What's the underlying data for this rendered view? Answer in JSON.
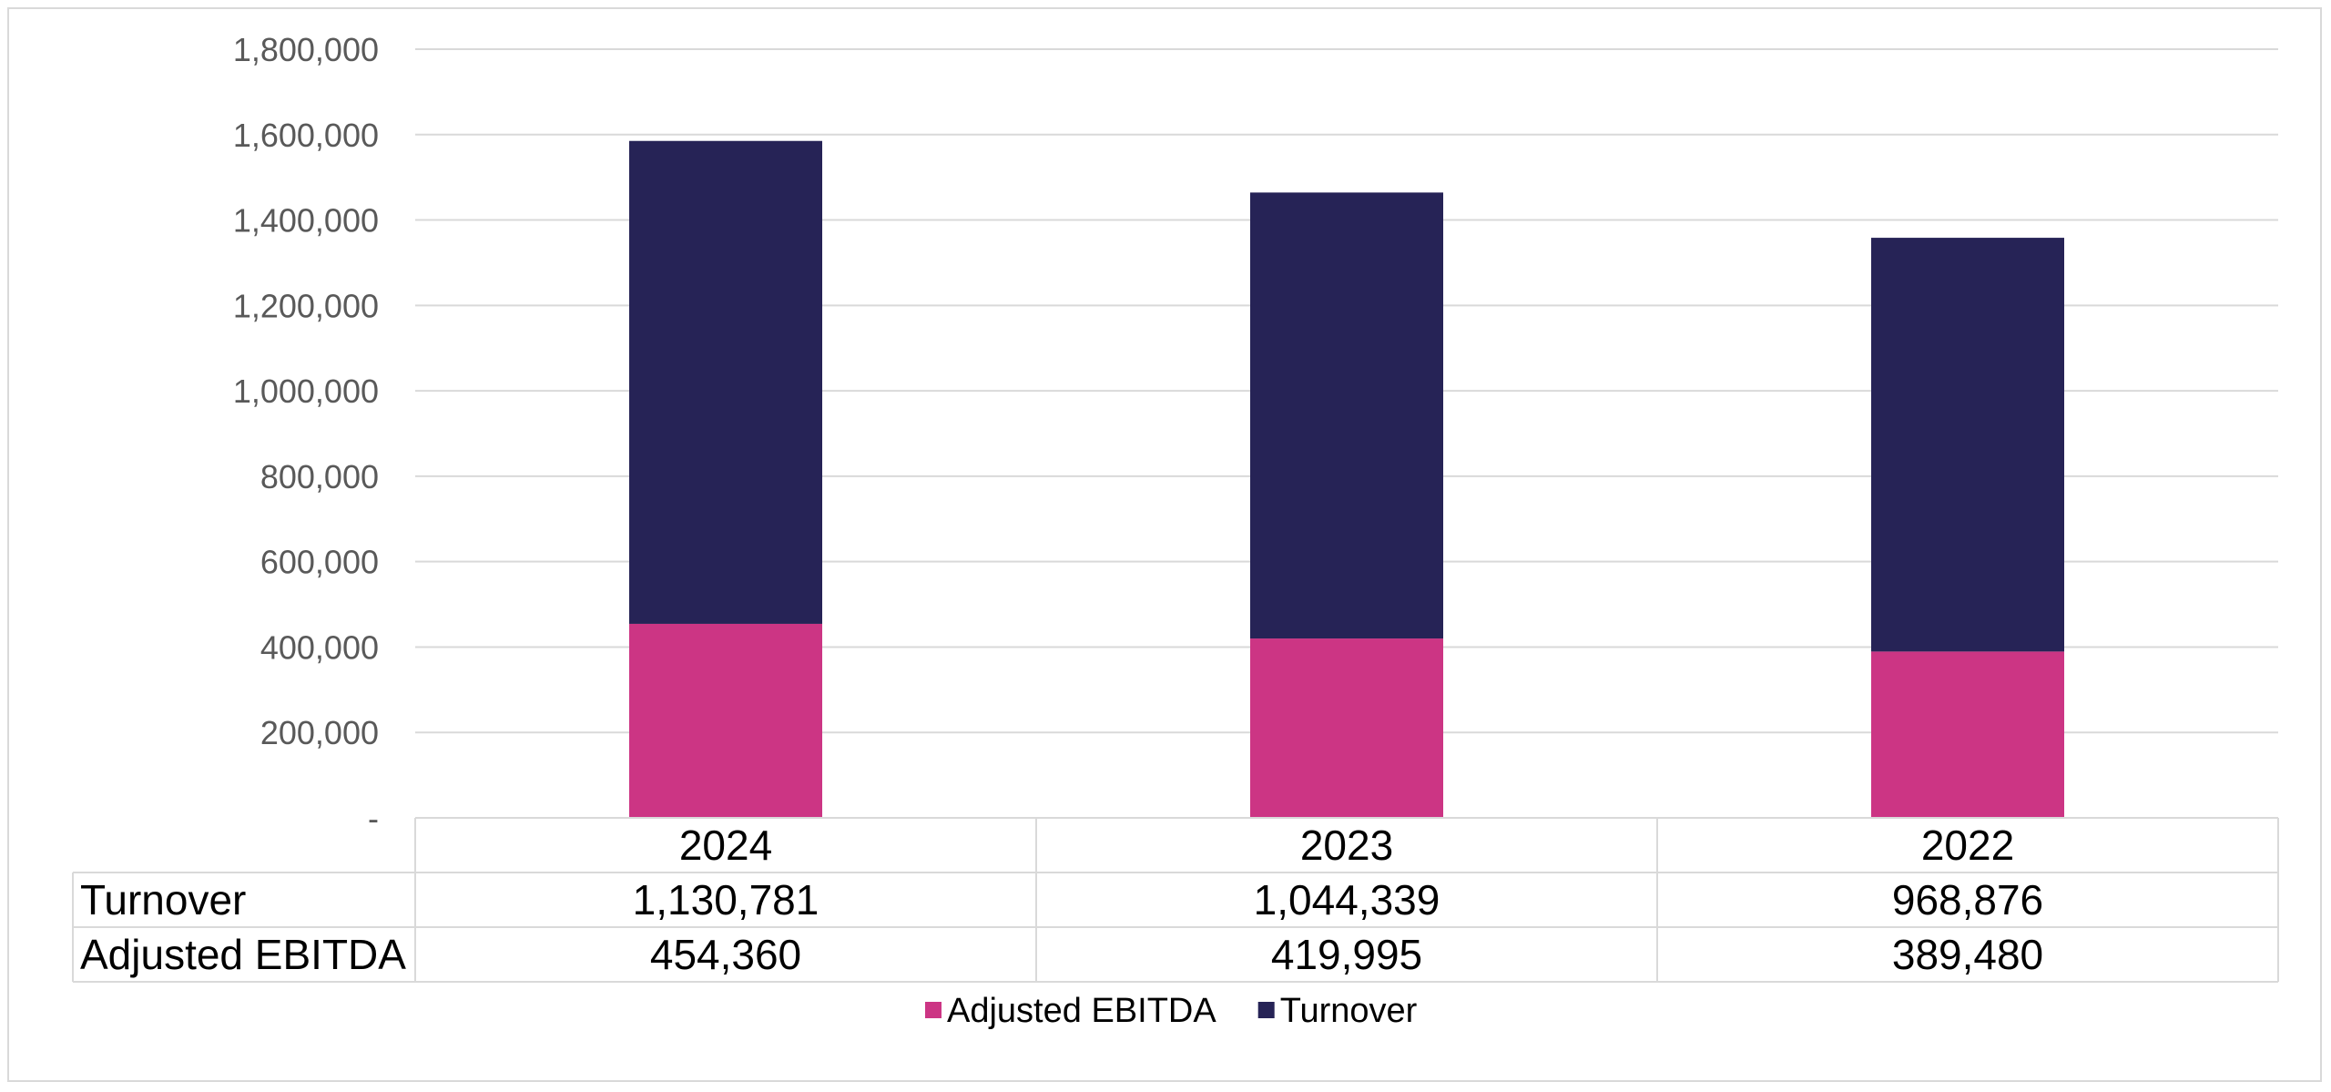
{
  "chart_data": {
    "type": "bar",
    "stacked": true,
    "categories": [
      "2024",
      "2023",
      "2022"
    ],
    "series": [
      {
        "name": "Adjusted EBITDA",
        "values": [
          454360,
          419995,
          389480
        ],
        "color": "#cc3584"
      },
      {
        "name": "Turnover",
        "values": [
          1130781,
          1044339,
          968876
        ],
        "color": "#262356"
      }
    ],
    "ylim": [
      0,
      1800000
    ],
    "yticks": [
      {
        "value": 0,
        "label": "-"
      },
      {
        "value": 200000,
        "label": "200,000"
      },
      {
        "value": 400000,
        "label": "400,000"
      },
      {
        "value": 600000,
        "label": "600,000"
      },
      {
        "value": 800000,
        "label": "800,000"
      },
      {
        "value": 1000000,
        "label": "1,000,000"
      },
      {
        "value": 1200000,
        "label": "1,200,000"
      },
      {
        "value": 1400000,
        "label": "1,400,000"
      },
      {
        "value": 1600000,
        "label": "1,600,000"
      },
      {
        "value": 1800000,
        "label": "1,800,000"
      }
    ],
    "grid": true,
    "legend_position": "bottom",
    "data_table": {
      "rows": [
        {
          "label": "Turnover",
          "values": [
            "1,130,781",
            "1,044,339",
            "968,876"
          ]
        },
        {
          "label": "Adjusted EBITDA",
          "values": [
            "454,360",
            "419,995",
            "389,480"
          ]
        }
      ]
    },
    "legend": [
      {
        "label": "Adjusted EBITDA",
        "color": "#cc3584"
      },
      {
        "label": "Turnover",
        "color": "#262356"
      }
    ]
  }
}
